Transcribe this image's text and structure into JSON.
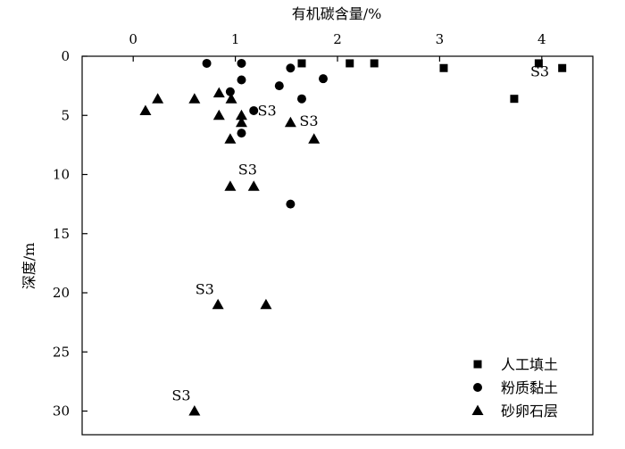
{
  "chart_data": {
    "type": "scatter",
    "xlabel": "有机碳含量/%",
    "ylabel": "深度/m",
    "x_axis_position": "top",
    "y_axis_inverted": true,
    "xlim": [
      -0.5,
      4.5
    ],
    "ylim": [
      0,
      32
    ],
    "x_ticks": [
      0,
      1,
      2,
      3,
      4
    ],
    "x_tick_labels": [
      "0",
      "1",
      "2",
      "3",
      "4"
    ],
    "y_ticks": [
      0,
      5,
      10,
      15,
      20,
      25,
      30
    ],
    "y_tick_labels": [
      "0",
      "5",
      "10",
      "15",
      "20",
      "25",
      "30"
    ],
    "grid": false,
    "legend_position": "bottom-right",
    "series": [
      {
        "name": "人工填土",
        "marker": "square",
        "points": [
          {
            "x": 1.65,
            "y": 0.6
          },
          {
            "x": 2.12,
            "y": 0.6
          },
          {
            "x": 2.36,
            "y": 0.6
          },
          {
            "x": 3.04,
            "y": 1.0
          },
          {
            "x": 3.97,
            "y": 0.6
          },
          {
            "x": 4.2,
            "y": 1.0
          },
          {
            "x": 3.73,
            "y": 3.6
          }
        ]
      },
      {
        "name": "粉质黏土",
        "marker": "circle",
        "points": [
          {
            "x": 0.72,
            "y": 0.6
          },
          {
            "x": 1.06,
            "y": 0.6
          },
          {
            "x": 1.54,
            "y": 1.0
          },
          {
            "x": 1.06,
            "y": 2.0
          },
          {
            "x": 1.86,
            "y": 1.9
          },
          {
            "x": 1.43,
            "y": 2.5
          },
          {
            "x": 0.95,
            "y": 3.0
          },
          {
            "x": 1.65,
            "y": 3.6
          },
          {
            "x": 1.18,
            "y": 4.6
          },
          {
            "x": 1.06,
            "y": 6.5
          },
          {
            "x": 1.54,
            "y": 12.5
          }
        ]
      },
      {
        "name": "砂卵石层",
        "marker": "triangle",
        "points": [
          {
            "x": 0.12,
            "y": 4.6
          },
          {
            "x": 0.24,
            "y": 3.6
          },
          {
            "x": 0.6,
            "y": 3.6
          },
          {
            "x": 0.84,
            "y": 3.1
          },
          {
            "x": 0.96,
            "y": 3.6
          },
          {
            "x": 0.84,
            "y": 5.0
          },
          {
            "x": 1.06,
            "y": 5.0
          },
          {
            "x": 1.06,
            "y": 5.6
          },
          {
            "x": 0.95,
            "y": 7.0
          },
          {
            "x": 1.54,
            "y": 5.6
          },
          {
            "x": 1.77,
            "y": 7.0
          },
          {
            "x": 0.95,
            "y": 11.0
          },
          {
            "x": 1.18,
            "y": 11.0
          },
          {
            "x": 0.83,
            "y": 21.0
          },
          {
            "x": 1.3,
            "y": 21.0
          },
          {
            "x": 0.6,
            "y": 30.0
          }
        ]
      }
    ],
    "annotations": [
      {
        "text": "S3",
        "x": 3.98,
        "y": 1.7
      },
      {
        "text": "S3",
        "x": 1.31,
        "y": 5.0
      },
      {
        "text": "S3",
        "x": 1.72,
        "y": 5.9
      },
      {
        "text": "S3",
        "x": 1.12,
        "y": 10.0
      },
      {
        "text": "S3",
        "x": 0.7,
        "y": 20.1
      },
      {
        "text": "S3",
        "x": 0.47,
        "y": 29.1
      }
    ]
  }
}
